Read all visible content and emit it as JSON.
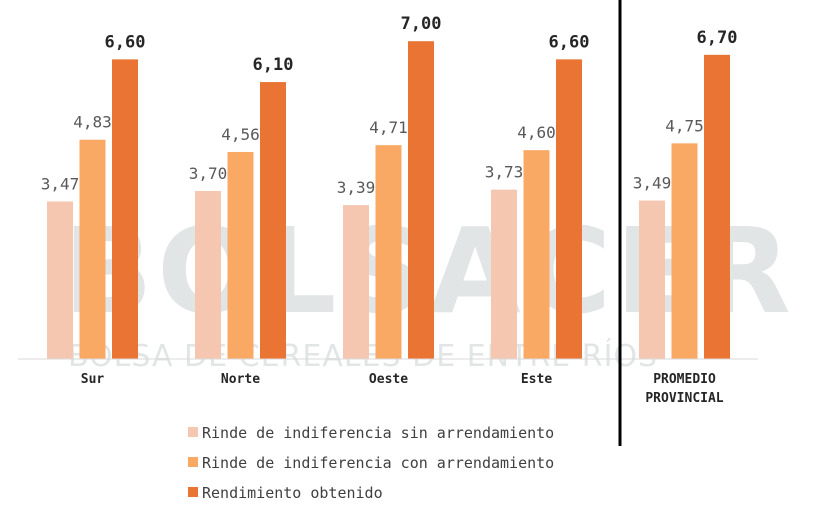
{
  "watermark": {
    "main": "BOLSACER",
    "sub": "BOLSA DE CEREALES DE ENTRE RÍOS"
  },
  "chart_data": {
    "type": "bar",
    "categories": [
      "Sur",
      "Norte",
      "Oeste",
      "Este",
      "PROMEDIO PROVINCIAL"
    ],
    "category_lines": [
      [
        "Sur"
      ],
      [
        "Norte"
      ],
      [
        "Oeste"
      ],
      [
        "Este"
      ],
      [
        "PROMEDIO",
        "PROVINCIAL"
      ]
    ],
    "series": [
      {
        "name": "Rinde de indiferencia sin arrendamiento",
        "color": "#f6c7b0",
        "labels": [
          "3,47",
          "3,70",
          "3,39",
          "3,73",
          "3,49"
        ],
        "values": [
          3.47,
          3.7,
          3.39,
          3.73,
          3.49
        ]
      },
      {
        "name": "Rinde de indiferencia con arrendamiento",
        "color": "#f9a964",
        "labels": [
          "4,83",
          "4,56",
          "4,71",
          "4,60",
          "4,75"
        ],
        "values": [
          4.83,
          4.56,
          4.71,
          4.6,
          4.75
        ]
      },
      {
        "name": "Rendimiento obtenido",
        "color": "#ea7434",
        "labels": [
          "6,60",
          "6,10",
          "7,00",
          "6,60",
          "6,70"
        ],
        "values": [
          6.6,
          6.1,
          7.0,
          6.6,
          6.7
        ]
      }
    ],
    "ylim": [
      0,
      7.5
    ],
    "grid": false,
    "legend_position": "bottom",
    "separator_before_category": 4
  }
}
